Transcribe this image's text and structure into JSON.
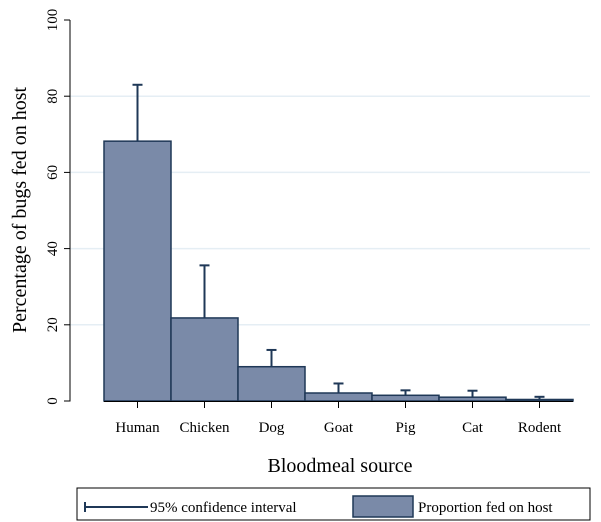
{
  "chart_data": {
    "type": "bar",
    "xlabel": "Bloodmeal source",
    "ylabel": "Percentage of bugs fed on host",
    "ylim": [
      0,
      100
    ],
    "yticks": [
      0,
      20,
      40,
      60,
      80,
      100
    ],
    "grid": true,
    "legend_position": "bottom",
    "categories": [
      "Human",
      "Chicken",
      "Dog",
      "Goat",
      "Pig",
      "Cat",
      "Rodent"
    ],
    "series": [
      {
        "name": "Proportion fed on host",
        "values": [
          68.2,
          21.8,
          9.0,
          2.1,
          1.5,
          1.0,
          0.4
        ],
        "ci_upper": [
          83.0,
          35.6,
          13.4,
          4.6,
          2.8,
          2.7,
          1.1
        ]
      }
    ],
    "legend": {
      "ci_label": "95% confidence interval",
      "bar_label": "Proportion fed on host"
    },
    "colors": {
      "bar_fill": "#7a8aa8",
      "bar_stroke": "#1f3857",
      "grid": "#e5eef4",
      "axis": "#000000"
    }
  }
}
